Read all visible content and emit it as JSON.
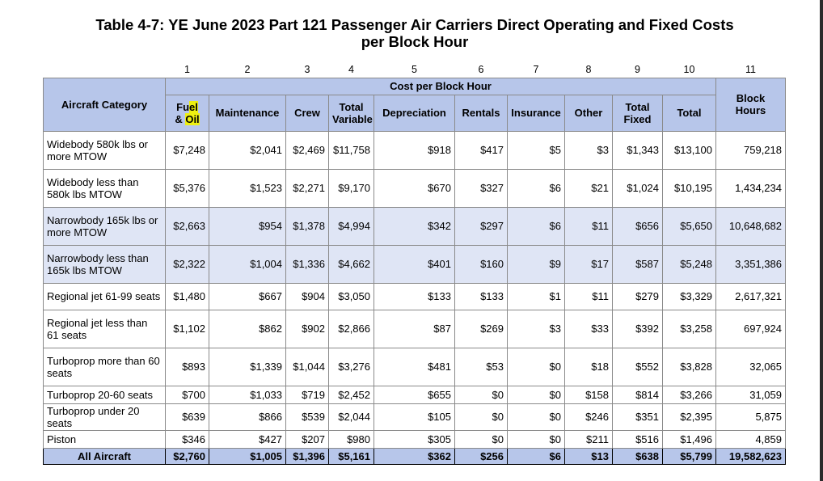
{
  "title_line1": "Table 4-7: YE June 2023 Part 121 Passenger Air Carriers Direct Operating and Fixed Costs",
  "title_line2": "per Block Hour",
  "column_numbers": [
    "1",
    "2",
    "3",
    "4",
    "5",
    "6",
    "7",
    "8",
    "9",
    "10",
    "11"
  ],
  "headers": {
    "aircraft_category": "Aircraft Category",
    "cost_per_block_hour": "Cost per Block Hour",
    "fuel_part1": "Fu",
    "fuel_highlight1": "el",
    "fuel_part2": "& ",
    "fuel_highlight2": "Oil",
    "maintenance": "Maintenance",
    "crew": "Crew",
    "total_variable_1": "Total",
    "total_variable_2": "Variable",
    "depreciation": "Depreciation",
    "rentals": "Rentals",
    "insurance": "Insurance",
    "other": "Other",
    "total_fixed_1": "Total",
    "total_fixed_2": "Fixed",
    "total": "Total",
    "block_hours_1": "Block",
    "block_hours_2": "Hours"
  },
  "rows": [
    {
      "name": "Widebody 580k lbs or more MTOW",
      "values": [
        "$7,248",
        "$2,041",
        "$2,469",
        "$11,758",
        "$918",
        "$417",
        "$5",
        "$3",
        "$1,343",
        "$13,100",
        "759,218"
      ]
    },
    {
      "name": "Widebody less than 580k lbs MTOW",
      "values": [
        "$5,376",
        "$1,523",
        "$2,271",
        "$9,170",
        "$670",
        "$327",
        "$6",
        "$21",
        "$1,024",
        "$10,195",
        "1,434,234"
      ]
    },
    {
      "name": "Narrowbody 165k lbs or more MTOW",
      "values": [
        "$2,663",
        "$954",
        "$1,378",
        "$4,994",
        "$342",
        "$297",
        "$6",
        "$11",
        "$656",
        "$5,650",
        "10,648,682"
      ]
    },
    {
      "name": "Narrowbody less than 165k lbs MTOW",
      "values": [
        "$2,322",
        "$1,004",
        "$1,336",
        "$4,662",
        "$401",
        "$160",
        "$9",
        "$17",
        "$587",
        "$5,248",
        "3,351,386"
      ]
    },
    {
      "name": "Regional jet 61-99 seats",
      "values": [
        "$1,480",
        "$667",
        "$904",
        "$3,050",
        "$133",
        "$133",
        "$1",
        "$11",
        "$279",
        "$3,329",
        "2,617,321"
      ]
    },
    {
      "name": "Regional jet less than 61 seats",
      "values": [
        "$1,102",
        "$862",
        "$902",
        "$2,866",
        "$87",
        "$269",
        "$3",
        "$33",
        "$392",
        "$3,258",
        "697,924"
      ]
    },
    {
      "name": "Turboprop more than 60 seats",
      "values": [
        "$893",
        "$1,339",
        "$1,044",
        "$3,276",
        "$481",
        "$53",
        "$0",
        "$18",
        "$552",
        "$3,828",
        "32,065"
      ]
    },
    {
      "name": "Turboprop 20-60 seats",
      "values": [
        "$700",
        "$1,033",
        "$719",
        "$2,452",
        "$655",
        "$0",
        "$0",
        "$158",
        "$814",
        "$3,266",
        "31,059"
      ]
    },
    {
      "name": "Turboprop under 20 seats",
      "values": [
        "$639",
        "$866",
        "$539",
        "$2,044",
        "$105",
        "$0",
        "$0",
        "$246",
        "$351",
        "$2,395",
        "5,875"
      ]
    },
    {
      "name": "Piston",
      "values": [
        "$346",
        "$427",
        "$207",
        "$980",
        "$305",
        "$0",
        "$0",
        "$211",
        "$516",
        "$1,496",
        "4,859"
      ]
    }
  ],
  "total_row": {
    "name": "All Aircraft",
    "values": [
      "$2,760",
      "$1,005",
      "$1,396",
      "$5,161",
      "$362",
      "$256",
      "$6",
      "$13",
      "$638",
      "$5,799",
      "19,582,623"
    ]
  }
}
